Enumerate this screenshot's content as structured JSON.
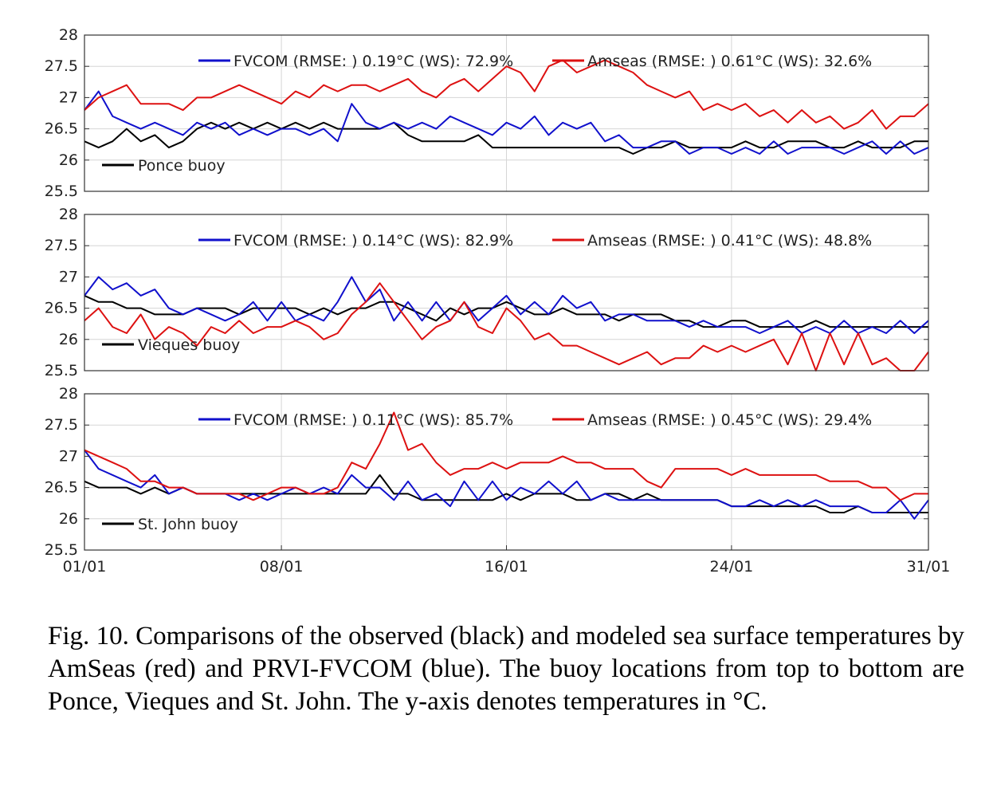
{
  "chart_data": [
    {
      "type": "line",
      "buoy_label": "Ponce buoy",
      "ylim": [
        25.5,
        28
      ],
      "yticks": [
        "28",
        "27.5",
        "27",
        "26.5",
        "26",
        "25.5"
      ],
      "grid": true,
      "legend": {
        "placement": "top",
        "fvcom": "FVCOM (RMSE: ) 0.19°C   (WS): 72.9%",
        "amseas": "Amseas (RMSE: ) 0.61°C    (WS): 32.6%"
      },
      "series": [
        {
          "name": "Ponce buoy (observed)",
          "color": "#000000",
          "values": [
            26.3,
            26.2,
            26.3,
            26.5,
            26.3,
            26.4,
            26.2,
            26.3,
            26.5,
            26.6,
            26.5,
            26.6,
            26.5,
            26.6,
            26.5,
            26.6,
            26.5,
            26.6,
            26.5,
            26.5,
            26.5,
            26.5,
            26.6,
            26.4,
            26.3,
            26.3,
            26.3,
            26.3,
            26.4,
            26.2,
            26.2,
            26.2,
            26.2,
            26.2,
            26.2,
            26.2,
            26.2,
            26.2,
            26.2,
            26.1,
            26.2,
            26.2,
            26.3,
            26.2,
            26.2,
            26.2,
            26.2,
            26.3,
            26.2,
            26.2,
            26.3,
            26.3,
            26.3,
            26.2,
            26.2,
            26.3,
            26.2,
            26.2,
            26.2,
            26.3,
            26.3
          ]
        },
        {
          "name": "FVCOM",
          "color": "#1010cc",
          "values": [
            26.8,
            27.1,
            26.7,
            26.6,
            26.5,
            26.6,
            26.5,
            26.4,
            26.6,
            26.5,
            26.6,
            26.4,
            26.5,
            26.4,
            26.5,
            26.5,
            26.4,
            26.5,
            26.3,
            26.9,
            26.6,
            26.5,
            26.6,
            26.5,
            26.6,
            26.5,
            26.7,
            26.6,
            26.5,
            26.4,
            26.6,
            26.5,
            26.7,
            26.4,
            26.6,
            26.5,
            26.6,
            26.3,
            26.4,
            26.2,
            26.2,
            26.3,
            26.3,
            26.1,
            26.2,
            26.2,
            26.1,
            26.2,
            26.1,
            26.3,
            26.1,
            26.2,
            26.2,
            26.2,
            26.1,
            26.2,
            26.3,
            26.1,
            26.3,
            26.1,
            26.2
          ]
        },
        {
          "name": "Amseas",
          "color": "#dd1111",
          "values": [
            26.8,
            27.0,
            27.1,
            27.2,
            26.9,
            26.9,
            26.9,
            26.8,
            27.0,
            27.0,
            27.1,
            27.2,
            27.1,
            27.0,
            26.9,
            27.1,
            27.0,
            27.2,
            27.1,
            27.2,
            27.2,
            27.1,
            27.2,
            27.3,
            27.1,
            27.0,
            27.2,
            27.3,
            27.1,
            27.3,
            27.5,
            27.4,
            27.1,
            27.5,
            27.6,
            27.4,
            27.5,
            27.6,
            27.5,
            27.4,
            27.2,
            27.1,
            27.0,
            27.1,
            26.8,
            26.9,
            26.8,
            26.9,
            26.7,
            26.8,
            26.6,
            26.8,
            26.6,
            26.7,
            26.5,
            26.6,
            26.8,
            26.5,
            26.7,
            26.7,
            26.9
          ]
        }
      ]
    },
    {
      "type": "line",
      "buoy_label": "Vieques buoy",
      "ylim": [
        25.5,
        28
      ],
      "yticks": [
        "28",
        "27.5",
        "27",
        "26.5",
        "26",
        "25.5"
      ],
      "grid": true,
      "legend": {
        "placement": "top",
        "fvcom": "FVCOM (RMSE: ) 0.14°C   (WS): 82.9%",
        "amseas": "Amseas (RMSE: ) 0.41°C    (WS): 48.8%"
      },
      "series": [
        {
          "name": "Vieques buoy (observed)",
          "color": "#000000",
          "values": [
            26.7,
            26.6,
            26.6,
            26.5,
            26.5,
            26.4,
            26.4,
            26.4,
            26.5,
            26.5,
            26.5,
            26.4,
            26.5,
            26.5,
            26.5,
            26.5,
            26.4,
            26.5,
            26.4,
            26.5,
            26.5,
            26.6,
            26.6,
            26.5,
            26.4,
            26.3,
            26.5,
            26.4,
            26.5,
            26.5,
            26.6,
            26.5,
            26.4,
            26.4,
            26.5,
            26.4,
            26.4,
            26.4,
            26.3,
            26.4,
            26.4,
            26.4,
            26.3,
            26.3,
            26.2,
            26.2,
            26.3,
            26.3,
            26.2,
            26.2,
            26.2,
            26.2,
            26.3,
            26.2,
            26.2,
            26.2,
            26.2,
            26.2,
            26.2,
            26.2,
            26.2
          ]
        },
        {
          "name": "FVCOM",
          "color": "#1010cc",
          "values": [
            26.7,
            27.0,
            26.8,
            26.9,
            26.7,
            26.8,
            26.5,
            26.4,
            26.5,
            26.4,
            26.3,
            26.4,
            26.6,
            26.3,
            26.6,
            26.3,
            26.4,
            26.3,
            26.6,
            27.0,
            26.6,
            26.8,
            26.3,
            26.6,
            26.3,
            26.6,
            26.3,
            26.6,
            26.3,
            26.5,
            26.7,
            26.4,
            26.6,
            26.4,
            26.7,
            26.5,
            26.6,
            26.3,
            26.4,
            26.4,
            26.3,
            26.3,
            26.3,
            26.2,
            26.3,
            26.2,
            26.2,
            26.2,
            26.1,
            26.2,
            26.3,
            26.1,
            26.2,
            26.1,
            26.3,
            26.1,
            26.2,
            26.1,
            26.3,
            26.1,
            26.3
          ]
        },
        {
          "name": "Amseas",
          "color": "#dd1111",
          "values": [
            26.3,
            26.5,
            26.2,
            26.1,
            26.4,
            26.0,
            26.2,
            26.1,
            25.9,
            26.2,
            26.1,
            26.3,
            26.1,
            26.2,
            26.2,
            26.3,
            26.2,
            26.0,
            26.1,
            26.4,
            26.6,
            26.9,
            26.6,
            26.3,
            26.0,
            26.2,
            26.3,
            26.6,
            26.2,
            26.1,
            26.5,
            26.3,
            26.0,
            26.1,
            25.9,
            25.9,
            25.8,
            25.7,
            25.6,
            25.7,
            25.8,
            25.6,
            25.7,
            25.7,
            25.9,
            25.8,
            25.9,
            25.8,
            25.9,
            26.0,
            25.6,
            26.1,
            25.5,
            26.1,
            25.6,
            26.1,
            25.6,
            25.7,
            25.5,
            25.5,
            25.8
          ]
        }
      ]
    },
    {
      "type": "line",
      "buoy_label": "St. John buoy",
      "ylim": [
        25.5,
        28
      ],
      "yticks": [
        "28",
        "27.5",
        "27",
        "26.5",
        "26",
        "25.5"
      ],
      "grid": true,
      "xticks": [
        "01/01",
        "08/01",
        "16/01",
        "24/01",
        "31/01"
      ],
      "legend": {
        "placement": "top",
        "fvcom": "FVCOM (RMSE: ) 0.11°C   (WS): 85.7%",
        "amseas": "Amseas (RMSE: ) 0.45°C    (WS): 29.4%"
      },
      "series": [
        {
          "name": "St. John buoy (observed)",
          "color": "#000000",
          "values": [
            26.6,
            26.5,
            26.5,
            26.5,
            26.4,
            26.5,
            26.4,
            26.5,
            26.4,
            26.4,
            26.4,
            26.4,
            26.4,
            26.4,
            26.4,
            26.4,
            26.4,
            26.4,
            26.4,
            26.4,
            26.4,
            26.7,
            26.4,
            26.4,
            26.3,
            26.3,
            26.3,
            26.3,
            26.3,
            26.3,
            26.4,
            26.3,
            26.4,
            26.4,
            26.4,
            26.3,
            26.3,
            26.4,
            26.4,
            26.3,
            26.4,
            26.3,
            26.3,
            26.3,
            26.3,
            26.3,
            26.2,
            26.2,
            26.2,
            26.2,
            26.2,
            26.2,
            26.2,
            26.1,
            26.1,
            26.2,
            26.1,
            26.1,
            26.1,
            26.1,
            26.1
          ]
        },
        {
          "name": "FVCOM",
          "color": "#1010cc",
          "values": [
            27.1,
            26.8,
            26.7,
            26.6,
            26.5,
            26.7,
            26.4,
            26.5,
            26.4,
            26.4,
            26.4,
            26.3,
            26.4,
            26.3,
            26.4,
            26.5,
            26.4,
            26.5,
            26.4,
            26.7,
            26.5,
            26.5,
            26.3,
            26.6,
            26.3,
            26.4,
            26.2,
            26.6,
            26.3,
            26.6,
            26.3,
            26.5,
            26.4,
            26.6,
            26.4,
            26.6,
            26.3,
            26.4,
            26.3,
            26.3,
            26.3,
            26.3,
            26.3,
            26.3,
            26.3,
            26.3,
            26.2,
            26.2,
            26.3,
            26.2,
            26.3,
            26.2,
            26.3,
            26.2,
            26.2,
            26.2,
            26.1,
            26.1,
            26.3,
            26.0,
            26.3
          ]
        },
        {
          "name": "Amseas",
          "color": "#dd1111",
          "values": [
            27.1,
            27.0,
            26.9,
            26.8,
            26.6,
            26.6,
            26.5,
            26.5,
            26.4,
            26.4,
            26.4,
            26.4,
            26.3,
            26.4,
            26.5,
            26.5,
            26.4,
            26.4,
            26.5,
            26.9,
            26.8,
            27.2,
            27.7,
            27.1,
            27.2,
            26.9,
            26.7,
            26.8,
            26.8,
            26.9,
            26.8,
            26.9,
            26.9,
            26.9,
            27.0,
            26.9,
            26.9,
            26.8,
            26.8,
            26.8,
            26.6,
            26.5,
            26.8,
            26.8,
            26.8,
            26.8,
            26.7,
            26.8,
            26.7,
            26.7,
            26.7,
            26.7,
            26.7,
            26.6,
            26.6,
            26.6,
            26.5,
            26.5,
            26.3,
            26.4,
            26.4
          ]
        }
      ]
    }
  ],
  "caption": "Fig. 10.  Comparisons of the observed (black) and modeled sea surface temperatures by AmSeas (red) and PRVI-FVCOM (blue). The buoy locations from top to bottom are Ponce, Vieques and St. John. The y-axis denotes temperatures in °C."
}
